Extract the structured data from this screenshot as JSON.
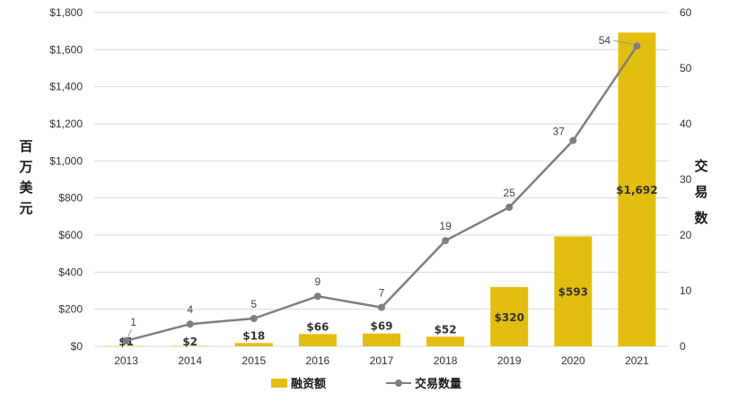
{
  "chart_data": {
    "type": "bar+line",
    "categories": [
      "2013",
      "2014",
      "2015",
      "2016",
      "2017",
      "2018",
      "2019",
      "2020",
      "2021"
    ],
    "series": [
      {
        "name": "融资额",
        "type": "bar",
        "axis": "left",
        "values": [
          1,
          2,
          18,
          66,
          69,
          52,
          320,
          593,
          1692
        ],
        "labels": [
          "$1",
          "$2",
          "$18",
          "$66",
          "$69",
          "$52",
          "$320",
          "$593",
          "$1,692"
        ],
        "color": "#e2be10"
      },
      {
        "name": "交易数量",
        "type": "line",
        "axis": "right",
        "values": [
          1,
          4,
          5,
          9,
          7,
          19,
          25,
          37,
          54
        ],
        "labels": [
          "1",
          "4",
          "5",
          "9",
          "7",
          "19",
          "25",
          "37",
          "54"
        ],
        "color": "#7f7f7f"
      }
    ],
    "ylabel_left": "百万美元",
    "ylabel_right": "交易数",
    "ylim_left": [
      0,
      1800
    ],
    "ylim_right": [
      0,
      60
    ],
    "yticks_left": [
      "$0",
      "$200",
      "$400",
      "$600",
      "$800",
      "$1,000",
      "$1,200",
      "$1,400",
      "$1,600",
      "$1,800"
    ],
    "yticks_right": [
      "0",
      "10",
      "20",
      "30",
      "40",
      "50",
      "60"
    ],
    "grid": true,
    "legend": "bottom"
  }
}
